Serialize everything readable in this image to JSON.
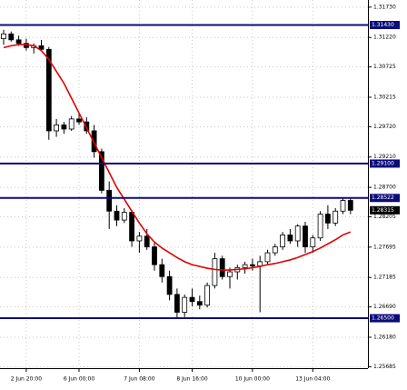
{
  "chart_data": {
    "type": "candlestick",
    "categories": [
      null,
      null,
      null,
      "2 Jun 20:00",
      null,
      null,
      null,
      null,
      null,
      null,
      "6 Jun 00:00",
      null,
      null,
      null,
      null,
      null,
      null,
      null,
      "7 Jun 08:00",
      null,
      null,
      null,
      null,
      null,
      null,
      "8 Jun 16:00",
      null,
      null,
      null,
      null,
      null,
      null,
      null,
      "10 Jun 00:00",
      null,
      null,
      null,
      null,
      null,
      null,
      null,
      "13 Jun 04:00",
      null,
      null,
      null,
      null,
      null
    ],
    "open": [
      1.312,
      1.3128,
      1.3118,
      1.3112,
      1.3105,
      1.3108,
      1.3102,
      1.2965,
      1.2975,
      1.2968,
      1.2985,
      1.298,
      1.2965,
      1.293,
      1.2865,
      1.283,
      1.2815,
      1.2828,
      1.278,
      1.2788,
      1.277,
      1.274,
      1.272,
      1.269,
      1.266,
      1.2685,
      1.2678,
      1.2672,
      1.2705,
      1.275,
      1.272,
      1.2728,
      1.2735,
      1.274,
      1.2738,
      1.2745,
      1.276,
      1.277,
      1.279,
      1.278,
      1.2805,
      1.277,
      1.2785,
      1.2825,
      1.281,
      1.283,
      1.2848
    ],
    "high": [
      1.3135,
      1.3132,
      1.3125,
      1.312,
      1.3112,
      1.3118,
      1.3106,
      1.2985,
      1.298,
      1.299,
      1.2995,
      1.2988,
      1.2975,
      1.2935,
      1.288,
      1.284,
      1.2835,
      1.2832,
      1.2795,
      1.28,
      1.2778,
      1.275,
      1.273,
      1.27,
      1.269,
      1.27,
      1.2688,
      1.271,
      1.276,
      1.2755,
      1.2735,
      1.274,
      1.2745,
      1.275,
      1.2755,
      1.2765,
      1.2775,
      1.2795,
      1.28,
      1.2808,
      1.2812,
      1.279,
      1.283,
      1.284,
      1.2835,
      1.2852,
      1.2852
    ],
    "low": [
      1.311,
      1.3115,
      1.3108,
      1.31,
      1.3095,
      1.31,
      1.295,
      1.2955,
      1.296,
      1.2965,
      1.2975,
      1.296,
      1.292,
      1.286,
      1.28,
      1.2805,
      1.281,
      1.277,
      1.276,
      1.2765,
      1.273,
      1.271,
      1.268,
      1.265,
      1.2652,
      1.267,
      1.2665,
      1.2668,
      1.27,
      1.2715,
      1.27,
      1.2715,
      1.2725,
      1.273,
      1.266,
      1.274,
      1.2755,
      1.2765,
      1.2775,
      1.277,
      1.276,
      1.276,
      1.278,
      1.28,
      1.2805,
      1.2825,
      1.2825
    ],
    "close": [
      1.3128,
      1.3118,
      1.3112,
      1.3105,
      1.3108,
      1.3102,
      1.2965,
      1.2975,
      1.2968,
      1.2985,
      1.298,
      1.2965,
      1.293,
      1.2865,
      1.283,
      1.2815,
      1.2828,
      1.278,
      1.2788,
      1.277,
      1.274,
      1.272,
      1.269,
      1.266,
      1.2685,
      1.2678,
      1.2672,
      1.2705,
      1.275,
      1.272,
      1.2728,
      1.2735,
      1.274,
      1.2738,
      1.2745,
      1.276,
      1.277,
      1.279,
      1.278,
      1.2805,
      1.277,
      1.2785,
      1.2825,
      1.281,
      1.283,
      1.2848,
      1.28315
    ],
    "up_color": "#ffffff",
    "down_color": "#000000",
    "ma": {
      "color": "#e00000",
      "values": [
        1.3105,
        1.3108,
        1.311,
        1.311,
        1.3108,
        1.31,
        1.3085,
        1.3065,
        1.3045,
        1.302,
        1.2995,
        1.297,
        1.2945,
        1.292,
        1.2895,
        1.287,
        1.285,
        1.283,
        1.281,
        1.2792,
        1.2778,
        1.2768,
        1.276,
        1.2752,
        1.2745,
        1.274,
        1.2737,
        1.2734,
        1.2732,
        1.2731,
        1.2731,
        1.2732,
        1.2733,
        1.2735,
        1.2737,
        1.274,
        1.2742,
        1.2745,
        1.2748,
        1.2752,
        1.2757,
        1.2762,
        1.2768,
        1.2775,
        1.2782,
        1.279,
        1.2795
      ]
    },
    "levels": [
      {
        "value": 1.3143,
        "label": "1.31430",
        "color": "#0b0b7a"
      },
      {
        "value": 1.291,
        "label": "1.29100",
        "color": "#0b0b7a"
      },
      {
        "value": 1.28522,
        "label": "1.28522",
        "color": "#0b0b7a"
      },
      {
        "value": 1.265,
        "label": "1.26500",
        "color": "#0b0b7a"
      }
    ],
    "current_price": {
      "value": 1.28315,
      "label": "1.28315",
      "color": "#000000"
    },
    "ylim": [
      1.2566,
      1.3185
    ],
    "yticks": [
      {
        "value": 1.3173,
        "label": "1.31730"
      },
      {
        "value": 1.3122,
        "label": "1.31220"
      },
      {
        "value": 1.30725,
        "label": "1.30725"
      },
      {
        "value": 1.30215,
        "label": "1.30215"
      },
      {
        "value": 1.2972,
        "label": "1.29720"
      },
      {
        "value": 1.2921,
        "label": "1.29210"
      },
      {
        "value": 1.287,
        "label": "1.28700"
      },
      {
        "value": 1.28205,
        "label": "1.28205"
      },
      {
        "value": 1.27695,
        "label": "1.27695"
      },
      {
        "value": 1.27185,
        "label": "1.27185"
      },
      {
        "value": 1.2669,
        "label": "1.26690"
      },
      {
        "value": 1.2618,
        "label": "1.26180"
      },
      {
        "value": 1.25685,
        "label": "1.25685"
      }
    ],
    "grid": true
  }
}
